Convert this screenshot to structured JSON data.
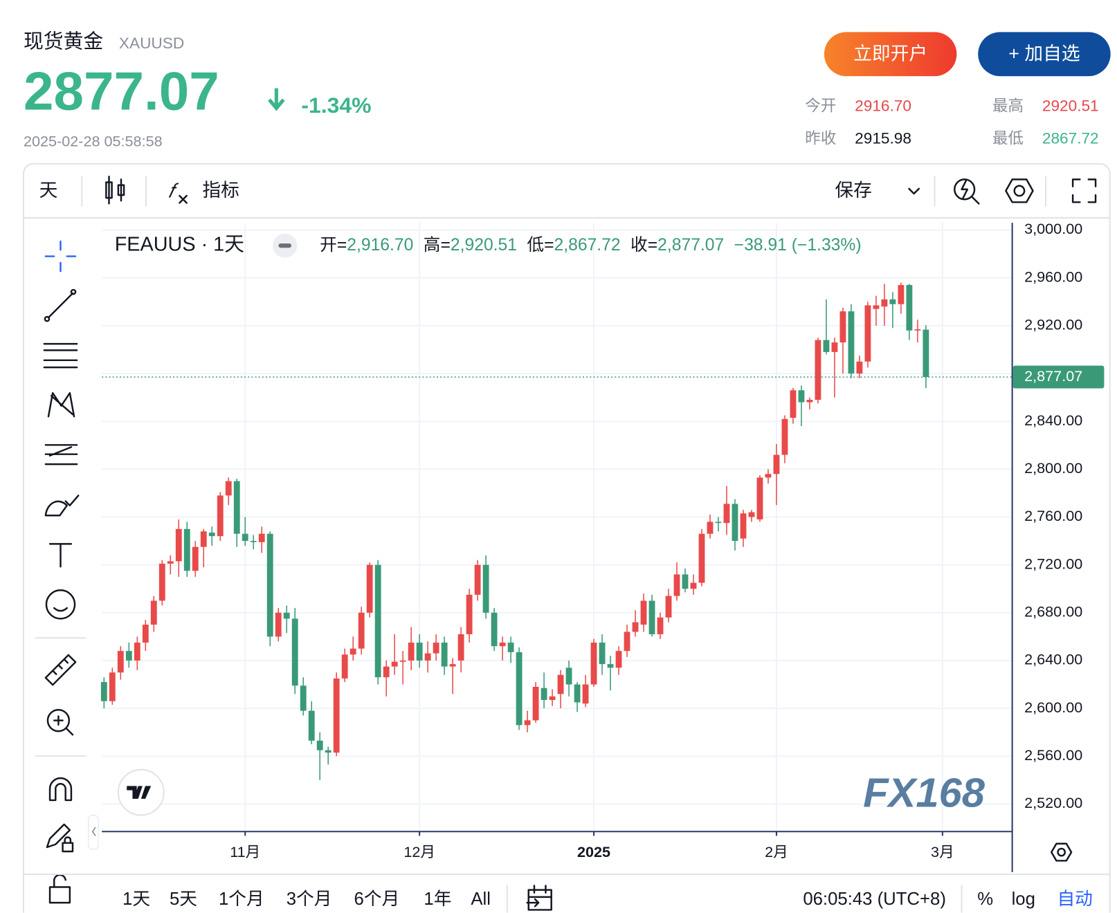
{
  "header": {
    "name": "现货黄金",
    "symbol": "XAUUSD",
    "price": "2877.07",
    "change": "-1.34%",
    "time": "2025-02-28 05:58:58",
    "buttons": [
      "立即开户",
      "+ 加自选"
    ],
    "stats": [
      {
        "label": "今开",
        "value": "2916.70"
      },
      {
        "label": "最高",
        "value": "2920.51"
      },
      {
        "label": "昨收",
        "value": "2915.98"
      },
      {
        "label": "最低",
        "value": "2867.72"
      }
    ]
  },
  "toolbar": {
    "interval": "天",
    "indicators": "指标",
    "save": "保存"
  },
  "chart_data": {
    "type": "candlestick",
    "title": "FEAUUS · 1天",
    "ohlc_legend": [
      {
        "label": "开=",
        "value": "2,916.70"
      },
      {
        "label": "高=",
        "value": "2,920.51"
      },
      {
        "label": "低=",
        "value": "2,867.72"
      },
      {
        "label": "收=",
        "value": "2,877.07"
      }
    ],
    "change_label": "−38.91 (−1.33%)",
    "up_color": "#e84a4a",
    "down_color": "#3a9a78",
    "open": [
      2622,
      2606,
      2630,
      2648,
      2640,
      2655,
      2670,
      2690,
      2721,
      2723,
      2750,
      2715,
      2735,
      2747,
      2744,
      2778,
      2790,
      2746,
      2740,
      2739,
      2746,
      2660,
      2680,
      2675,
      2619,
      2598,
      2573,
      2565,
      2563,
      2625,
      2645,
      2650,
      2680,
      2720,
      2626,
      2635,
      2639,
      2640,
      2655,
      2640,
      2646,
      2655,
      2635,
      2640,
      2662,
      2695,
      2720,
      2680,
      2652,
      2655,
      2647,
      2586,
      2590,
      2617,
      2607,
      2612,
      2634,
      2620,
      2604,
      2620,
      2655,
      2637,
      2634,
      2648,
      2664,
      2670,
      2690,
      2662,
      2676,
      2694,
      2712,
      2700,
      2705,
      2746,
      2756,
      2755,
      2771,
      2742,
      2760,
      2758,
      2793,
      2796,
      2812,
      2843,
      2866,
      2856,
      2858,
      2908,
      2898,
      2906,
      2932,
      2880,
      2890,
      2934,
      2936,
      2942,
      2938,
      2954,
      2916,
      2916.7
    ],
    "high": [
      2626,
      2634,
      2652,
      2655,
      2660,
      2674,
      2694,
      2724,
      2728,
      2758,
      2756,
      2740,
      2750,
      2752,
      2781,
      2793,
      2792,
      2760,
      2745,
      2752,
      2748,
      2684,
      2686,
      2684,
      2626,
      2606,
      2580,
      2568,
      2630,
      2650,
      2660,
      2685,
      2722,
      2724,
      2640,
      2662,
      2648,
      2668,
      2662,
      2656,
      2662,
      2660,
      2642,
      2668,
      2700,
      2724,
      2728,
      2684,
      2660,
      2660,
      2651,
      2598,
      2622,
      2630,
      2616,
      2632,
      2640,
      2622,
      2628,
      2658,
      2662,
      2644,
      2652,
      2670,
      2682,
      2696,
      2695,
      2680,
      2700,
      2722,
      2717,
      2712,
      2750,
      2762,
      2760,
      2786,
      2775,
      2766,
      2766,
      2795,
      2800,
      2821,
      2845,
      2868,
      2870,
      2860,
      2910,
      2942,
      2910,
      2935,
      2938,
      2895,
      2940,
      2945,
      2955,
      2948,
      2956,
      2955,
      2925,
      2920.51
    ],
    "low": [
      2600,
      2603,
      2624,
      2634,
      2632,
      2648,
      2664,
      2686,
      2712,
      2710,
      2710,
      2710,
      2718,
      2736,
      2740,
      2770,
      2735,
      2736,
      2733,
      2730,
      2652,
      2656,
      2663,
      2612,
      2594,
      2570,
      2540,
      2553,
      2560,
      2622,
      2640,
      2645,
      2676,
      2620,
      2610,
      2628,
      2620,
      2632,
      2634,
      2630,
      2640,
      2628,
      2612,
      2630,
      2655,
      2690,
      2675,
      2648,
      2640,
      2638,
      2582,
      2580,
      2588,
      2600,
      2602,
      2600,
      2610,
      2597,
      2601,
      2618,
      2628,
      2615,
      2628,
      2643,
      2660,
      2664,
      2660,
      2658,
      2672,
      2690,
      2697,
      2695,
      2702,
      2742,
      2748,
      2745,
      2732,
      2735,
      2756,
      2756,
      2788,
      2770,
      2805,
      2838,
      2836,
      2850,
      2855,
      2896,
      2860,
      2880,
      2876,
      2876,
      2885,
      2920,
      2920,
      2918,
      2930,
      2908,
      2906,
      2867.72
    ],
    "close": [
      2606,
      2630,
      2648,
      2640,
      2655,
      2670,
      2690,
      2721,
      2723,
      2750,
      2715,
      2735,
      2748,
      2744,
      2778,
      2790,
      2746,
      2740,
      2739,
      2746,
      2660,
      2680,
      2675,
      2619,
      2598,
      2573,
      2565,
      2563,
      2625,
      2645,
      2650,
      2680,
      2720,
      2626,
      2635,
      2639,
      2640,
      2655,
      2640,
      2646,
      2655,
      2635,
      2637,
      2662,
      2695,
      2720,
      2680,
      2652,
      2655,
      2647,
      2586,
      2590,
      2618,
      2607,
      2610,
      2628,
      2620,
      2605,
      2620,
      2655,
      2637,
      2634,
      2648,
      2664,
      2672,
      2690,
      2662,
      2676,
      2694,
      2712,
      2700,
      2705,
      2746,
      2756,
      2755,
      2771,
      2740,
      2763,
      2764,
      2793,
      2796,
      2812,
      2842,
      2866,
      2856,
      2858,
      2908,
      2898,
      2906,
      2932,
      2880,
      2890,
      2937,
      2937,
      2942,
      2938,
      2954,
      2916,
      2917,
      2877.07
    ],
    "ylim": [
      2497,
      3006
    ],
    "yticks": [
      {
        "value": 2520,
        "label": "2,520.00"
      },
      {
        "value": 2560,
        "label": "2,560.00"
      },
      {
        "value": 2600,
        "label": "2,600.00"
      },
      {
        "value": 2640,
        "label": "2,640.00"
      },
      {
        "value": 2680,
        "label": "2,680.00"
      },
      {
        "value": 2720,
        "label": "2,720.00"
      },
      {
        "value": 2760,
        "label": "2,760.00"
      },
      {
        "value": 2800,
        "label": "2,800.00"
      },
      {
        "value": 2840,
        "label": "2,840.00"
      },
      {
        "value": 2880,
        "label": "2,880.00"
      },
      {
        "value": 2920,
        "label": "2,920.00"
      },
      {
        "value": 2960,
        "label": "2,960.00"
      },
      {
        "value": 3000,
        "label": "3,000.00"
      }
    ],
    "xlim": [
      -0.26,
      109.4
    ],
    "xticks": [
      {
        "value": 17,
        "label": "11月"
      },
      {
        "value": 38,
        "label": "12月"
      },
      {
        "value": 59,
        "label": "2025"
      },
      {
        "value": 81,
        "label": "2月"
      },
      {
        "value": 101,
        "label": "3月"
      }
    ],
    "last_price": {
      "value": 2877.07,
      "label": "2,877.07"
    },
    "grid": true
  },
  "bottom_bar": {
    "ranges": [
      "1天",
      "5天",
      "1个月",
      "3个月",
      "6个月",
      "1年",
      "All"
    ],
    "clock": "06:05:43 (UTC+8)",
    "options": [
      "%",
      "log",
      "自动"
    ]
  },
  "watermark": "FX168"
}
